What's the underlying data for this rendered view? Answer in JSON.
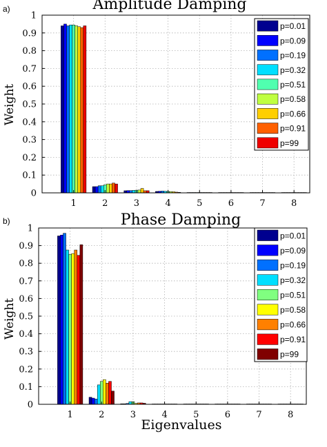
{
  "chart_data": [
    {
      "type": "bar",
      "panel_label": "a)",
      "title": "Amplitude Damping",
      "xlabel": "",
      "ylabel": "Weight",
      "ylim": [
        0,
        1
      ],
      "yticks": [
        "0",
        "0.1",
        "0.2",
        "0.3",
        "0.4",
        "0.5",
        "0.6",
        "0.7",
        "0.8",
        "0.9",
        "1"
      ],
      "grid": true,
      "legend_position": "top-right",
      "categories": [
        "1",
        "2",
        "3",
        "4",
        "5",
        "6",
        "7",
        "8"
      ],
      "series": [
        {
          "name": "p=0.01",
          "color": "#00008f",
          "values": [
            0.94,
            0.035,
            0.012,
            0.008,
            0.002,
            0.001,
            0.001,
            0.001
          ]
        },
        {
          "name": "p=0.09",
          "color": "#0000ff",
          "values": [
            0.95,
            0.035,
            0.013,
            0.009,
            0.002,
            0.001,
            0.001,
            0.001
          ]
        },
        {
          "name": "p=0.19",
          "color": "#0070ff",
          "values": [
            0.94,
            0.04,
            0.013,
            0.01,
            0.002,
            0.001,
            0.001,
            0.001
          ]
        },
        {
          "name": "p=0.32",
          "color": "#00dfff",
          "values": [
            0.945,
            0.04,
            0.014,
            0.009,
            0.002,
            0.001,
            0.001,
            0.001
          ]
        },
        {
          "name": "p=0.51",
          "color": "#50ffaf",
          "values": [
            0.945,
            0.045,
            0.015,
            0.008,
            0.002,
            0.001,
            0.001,
            0.001
          ]
        },
        {
          "name": "p=0.58",
          "color": "#bfff40",
          "values": [
            0.94,
            0.05,
            0.016,
            0.007,
            0.002,
            0.001,
            0.001,
            0.001
          ]
        },
        {
          "name": "p=0.66",
          "color": "#ffcf00",
          "values": [
            0.935,
            0.05,
            0.025,
            0.006,
            0.002,
            0.001,
            0.001,
            0.001
          ]
        },
        {
          "name": "p=0.91",
          "color": "#ff6000",
          "values": [
            0.93,
            0.055,
            0.012,
            0.004,
            0.002,
            0.001,
            0.001,
            0.001
          ]
        },
        {
          "name": "p=99",
          "color": "#ef0000",
          "values": [
            0.94,
            0.05,
            0.012,
            0.003,
            0.002,
            0.001,
            0.001,
            0.001
          ]
        }
      ]
    },
    {
      "type": "bar",
      "panel_label": "b)",
      "title": "Phase Damping",
      "xlabel": "Eigenvalues",
      "ylabel": "Weight",
      "ylim": [
        0,
        1
      ],
      "yticks": [
        "0",
        "0.1",
        "0.2",
        "0.3",
        "0.4",
        "0.5",
        "0.6",
        "0.7",
        "0.8",
        "0.9",
        "1"
      ],
      "grid": true,
      "legend_position": "top-right",
      "categories": [
        "1",
        "2",
        "3",
        "4",
        "5",
        "6",
        "7",
        "8"
      ],
      "series": [
        {
          "name": "p=0.01",
          "color": "#00008f",
          "values": [
            0.955,
            0.04,
            0.003,
            0.001,
            0.001,
            0.001,
            0.001,
            0.001
          ]
        },
        {
          "name": "p=0.09",
          "color": "#0000ff",
          "values": [
            0.96,
            0.035,
            0.003,
            0.001,
            0.001,
            0.001,
            0.001,
            0.001
          ]
        },
        {
          "name": "p=0.19",
          "color": "#0070ff",
          "values": [
            0.97,
            0.03,
            0.005,
            0.001,
            0.001,
            0.001,
            0.001,
            0.001
          ]
        },
        {
          "name": "p=0.32",
          "color": "#00dfff",
          "values": [
            0.875,
            0.11,
            0.015,
            0.001,
            0.001,
            0.001,
            0.001,
            0.001
          ]
        },
        {
          "name": "p=0.51",
          "color": "#80ff80",
          "values": [
            0.85,
            0.13,
            0.015,
            0.001,
            0.001,
            0.001,
            0.001,
            0.001
          ]
        },
        {
          "name": "p=0.58",
          "color": "#ffff00",
          "values": [
            0.855,
            0.14,
            0.005,
            0.001,
            0.001,
            0.001,
            0.001,
            0.001
          ]
        },
        {
          "name": "p=0.66",
          "color": "#ff8000",
          "values": [
            0.875,
            0.12,
            0.008,
            0.001,
            0.001,
            0.001,
            0.001,
            0.001
          ]
        },
        {
          "name": "p=0.91",
          "color": "#ff0000",
          "values": [
            0.845,
            0.13,
            0.008,
            0.001,
            0.001,
            0.001,
            0.001,
            0.001
          ]
        },
        {
          "name": "p=99",
          "color": "#800000",
          "values": [
            0.905,
            0.075,
            0.006,
            0.001,
            0.001,
            0.001,
            0.001,
            0.001
          ]
        }
      ]
    }
  ]
}
